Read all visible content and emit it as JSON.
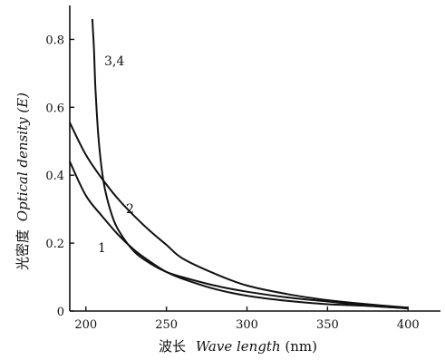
{
  "chart_data": {
    "type": "line",
    "xlabel_cn": "波长",
    "xlabel_en": "Wave length",
    "xlabel_unit": "(nm)",
    "ylabel_cn": "光密度",
    "ylabel_en_a": "Optical density",
    "ylabel_en_b": "(E)",
    "xlim": [
      190,
      410
    ],
    "ylim": [
      0,
      0.9
    ],
    "x_ticks": [
      200,
      250,
      300,
      350,
      400
    ],
    "x_tick_labels": [
      "200",
      "250",
      "300",
      "350",
      "400"
    ],
    "y_ticks": [
      0,
      0.2,
      0.4,
      0.6,
      0.8
    ],
    "y_tick_labels": [
      "0",
      "0.2",
      "0.4",
      "0.6",
      "0.8"
    ],
    "series": [
      {
        "name": "1",
        "x": [
          190,
          200,
          210,
          220,
          230,
          240,
          250,
          260,
          280,
          300,
          325,
          350,
          375,
          400
        ],
        "y": [
          0.44,
          0.34,
          0.28,
          0.225,
          0.18,
          0.145,
          0.115,
          0.095,
          0.065,
          0.045,
          0.03,
          0.02,
          0.015,
          0.008
        ]
      },
      {
        "name": "2",
        "x": [
          190,
          200,
          210,
          220,
          230,
          240,
          250,
          260,
          280,
          300,
          325,
          350,
          375,
          400
        ],
        "y": [
          0.555,
          0.46,
          0.39,
          0.33,
          0.28,
          0.235,
          0.195,
          0.155,
          0.11,
          0.075,
          0.05,
          0.032,
          0.02,
          0.01
        ]
      },
      {
        "name": "3,4",
        "x": [
          204,
          205,
          206,
          208,
          211,
          215,
          220,
          230,
          240,
          250,
          260,
          280,
          300,
          325,
          350,
          375,
          400
        ],
        "y": [
          0.86,
          0.77,
          0.65,
          0.5,
          0.38,
          0.3,
          0.24,
          0.175,
          0.14,
          0.115,
          0.1,
          0.075,
          0.057,
          0.04,
          0.028,
          0.016,
          0.008
        ]
      }
    ]
  }
}
